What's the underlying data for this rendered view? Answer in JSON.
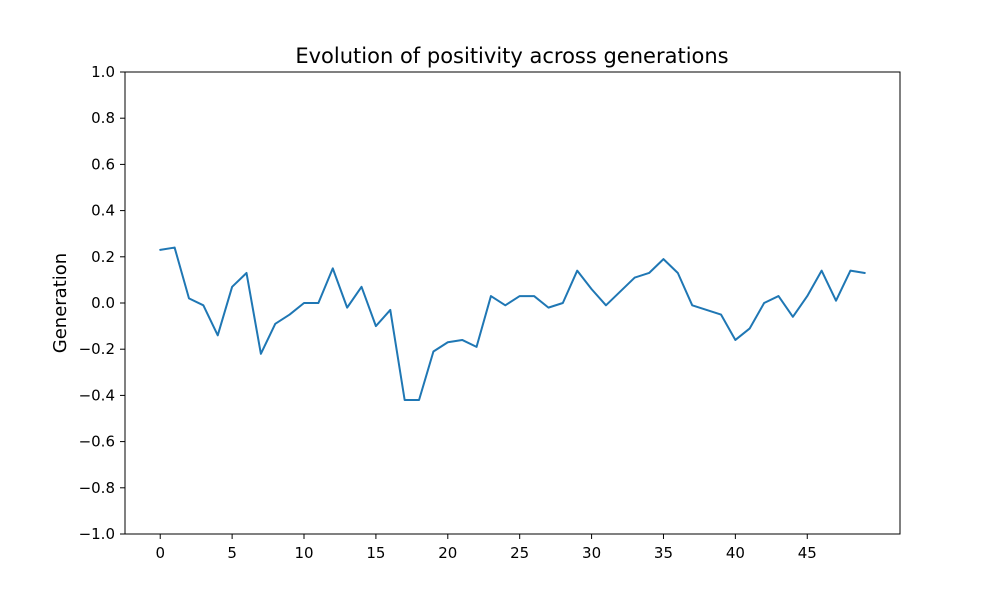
{
  "chart_data": {
    "type": "line",
    "title": "Evolution of positivity across generations",
    "xlabel": "",
    "ylabel": "Generation",
    "xlim": [
      -2.45,
      51.45
    ],
    "ylim": [
      -1.0,
      1.0
    ],
    "xticks": [
      0,
      5,
      10,
      15,
      20,
      25,
      30,
      35,
      40,
      45
    ],
    "xtick_labels": [
      "0",
      "5",
      "10",
      "15",
      "20",
      "25",
      "30",
      "35",
      "40",
      "45"
    ],
    "yticks": [
      -1.0,
      -0.8,
      -0.6,
      -0.4,
      -0.2,
      0.0,
      0.2,
      0.4,
      0.6,
      0.8,
      1.0
    ],
    "ytick_labels": [
      "−1.0",
      "−0.8",
      "−0.6",
      "−0.4",
      "−0.2",
      "0.0",
      "0.2",
      "0.4",
      "0.6",
      "0.8",
      "1.0"
    ],
    "grid": false,
    "series": [
      {
        "color": "#1f77b4",
        "x": [
          0,
          1,
          2,
          3,
          4,
          5,
          6,
          7,
          8,
          9,
          10,
          11,
          12,
          13,
          14,
          15,
          16,
          17,
          18,
          19,
          20,
          21,
          22,
          23,
          24,
          25,
          26,
          27,
          28,
          29,
          30,
          31,
          32,
          33,
          34,
          35,
          36,
          37,
          38,
          39,
          40,
          41,
          42,
          43,
          44,
          45,
          46,
          47,
          48,
          49
        ],
        "values": [
          0.23,
          0.24,
          0.02,
          -0.01,
          -0.14,
          0.07,
          0.13,
          -0.22,
          -0.09,
          -0.05,
          0.0,
          0.0,
          0.15,
          -0.02,
          0.07,
          -0.1,
          -0.03,
          -0.42,
          -0.42,
          -0.21,
          -0.17,
          -0.16,
          -0.19,
          0.03,
          -0.01,
          0.03,
          0.03,
          -0.02,
          0.0,
          0.14,
          0.06,
          -0.01,
          0.05,
          0.11,
          0.13,
          0.19,
          0.13,
          -0.01,
          -0.03,
          -0.05,
          -0.16,
          -0.11,
          0.0,
          0.03,
          -0.06,
          0.03,
          0.14,
          0.01,
          0.14,
          0.13
        ]
      }
    ]
  }
}
